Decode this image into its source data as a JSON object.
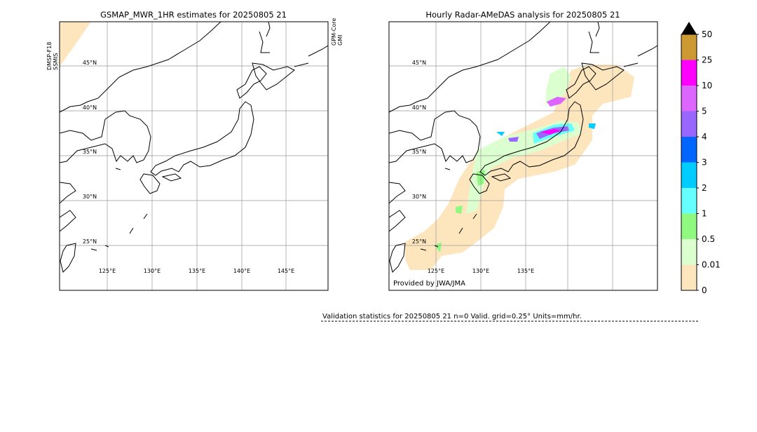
{
  "panels": [
    {
      "title": "GSMAP_MWR_1HR estimates for 20250805 21",
      "left_label": [
        "DMSP-F18",
        "SSMIS"
      ],
      "right_label": [
        "GPM-Core",
        "GMI"
      ],
      "lat_labels": [
        "45°N",
        "40°N",
        "35°N",
        "30°N",
        "25°N"
      ],
      "lon_labels": [
        "125°E",
        "130°E",
        "135°E",
        "140°E",
        "145°E"
      ]
    },
    {
      "title": "Hourly Radar-AMeDAS analysis for 20250805 21",
      "lat_labels": [
        "45°N",
        "40°N",
        "35°N",
        "30°N",
        "25°N"
      ],
      "lon_labels": [
        "125°E",
        "130°E",
        "135°E"
      ],
      "credit": "Provided by JWA/JMA"
    }
  ],
  "colorbar": {
    "levels": [
      0,
      0.01,
      0.5,
      1,
      2,
      3,
      4,
      5,
      10,
      25,
      50
    ],
    "colors": [
      "#fde6be",
      "#dcffd0",
      "#90f97f",
      "#66ffff",
      "#00ccff",
      "#0066ff",
      "#9966ff",
      "#dd66ff",
      "#ff00ff",
      "#cc9933"
    ],
    "extend_color": "#000000"
  },
  "footer": "Validation statistics for 20250805 21  n=0 Valid. grid=0.25° Units=mm/hr."
}
